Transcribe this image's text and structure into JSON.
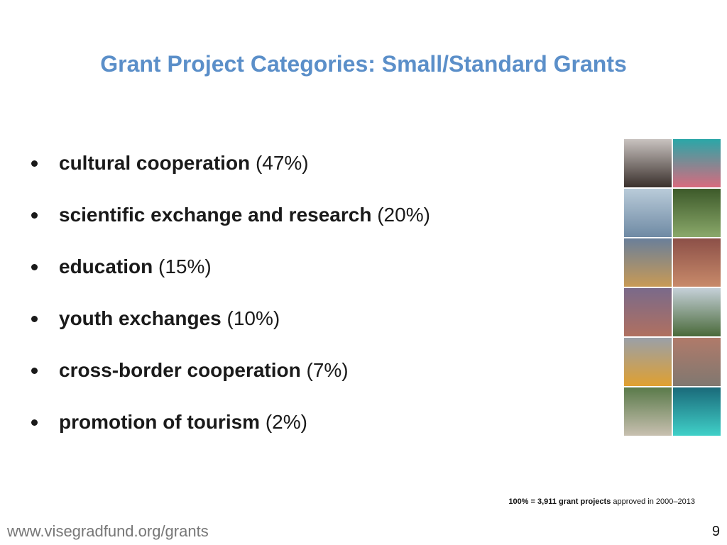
{
  "header": {
    "title": "Grant Project Categories: Small/Standard Grants"
  },
  "items": [
    {
      "label": "cultural cooperation",
      "share": "(47%)"
    },
    {
      "label": "scientific exchange and research",
      "share": "(20%)"
    },
    {
      "label": "education",
      "share": "(15%)"
    },
    {
      "label": "youth exchanges",
      "share": "(10%)"
    },
    {
      "label": "cross-border cooperation",
      "share": "(7%)"
    },
    {
      "label": "promotion of tourism",
      "share": "(2%)"
    }
  ],
  "footnote": {
    "bold": "100% = 3,911 grant projects",
    "rest": "approved in 2000–2013"
  },
  "footer": {
    "url": "www.visegradfund.org/grants",
    "page": "9"
  }
}
